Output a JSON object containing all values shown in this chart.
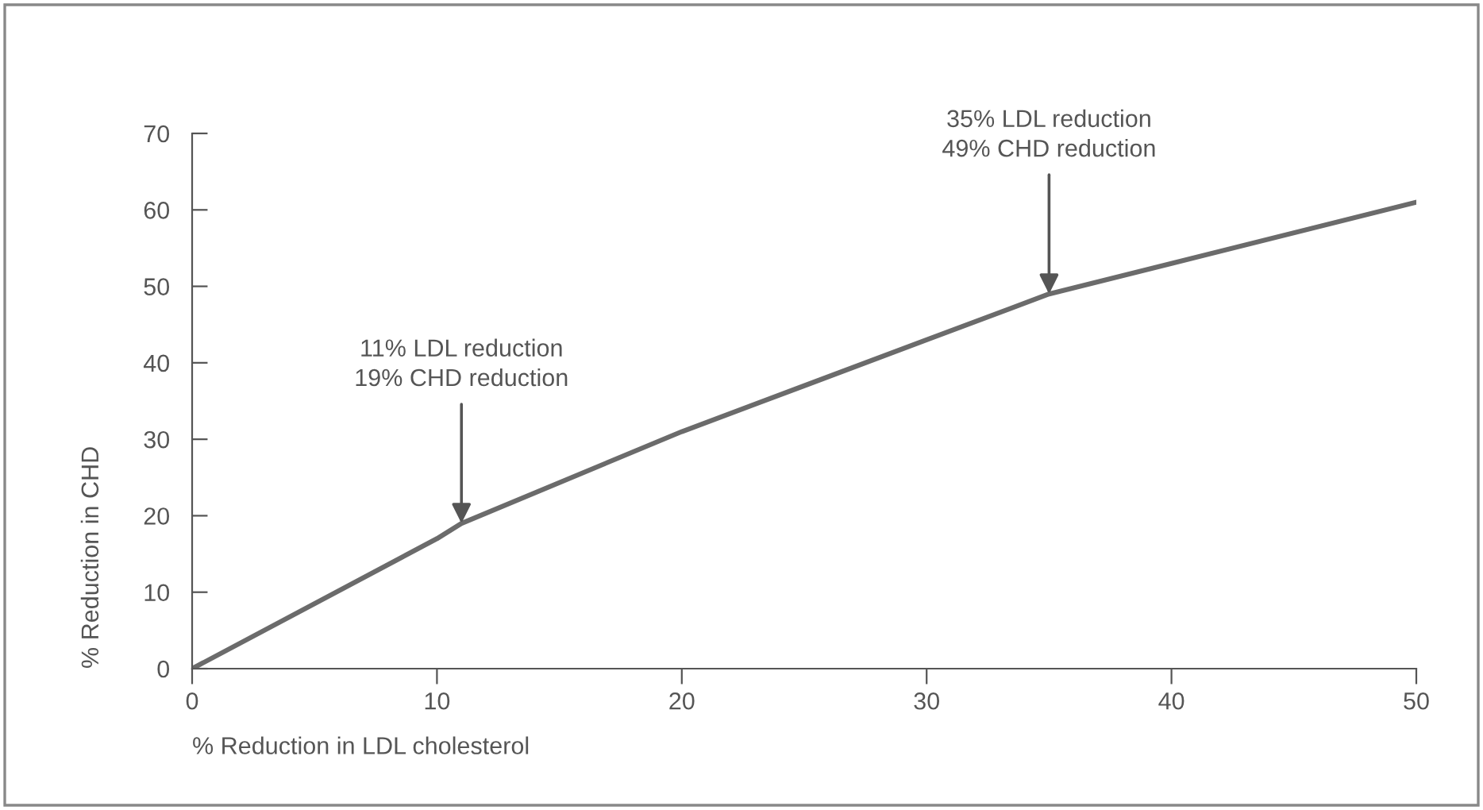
{
  "chart_data": {
    "type": "line",
    "x": [
      0,
      10,
      11,
      20,
      30,
      35,
      40,
      50
    ],
    "series": [
      {
        "color": "#6b6b6b",
        "values": [
          0,
          17,
          19,
          31,
          43,
          49,
          53,
          61
        ]
      }
    ],
    "xlabel": "% Reduction in LDL cholesterol",
    "ylabel": "% Reduction in CHD",
    "xlim": [
      0,
      50
    ],
    "xticks": [
      0,
      10,
      20,
      30,
      40,
      50
    ],
    "ylim": [
      0,
      70
    ],
    "yticks": [
      0,
      10,
      20,
      30,
      40,
      50,
      60,
      70
    ],
    "annotations": [
      {
        "text": "11% LDL reduction\n19% CHD reduction",
        "x": 11,
        "y": 19
      },
      {
        "text": "35% LDL reduction\n49% CHD reduction",
        "x": 35,
        "y": 49
      }
    ],
    "grid": false,
    "legend": false,
    "marker": "none",
    "line_style": "solid"
  }
}
